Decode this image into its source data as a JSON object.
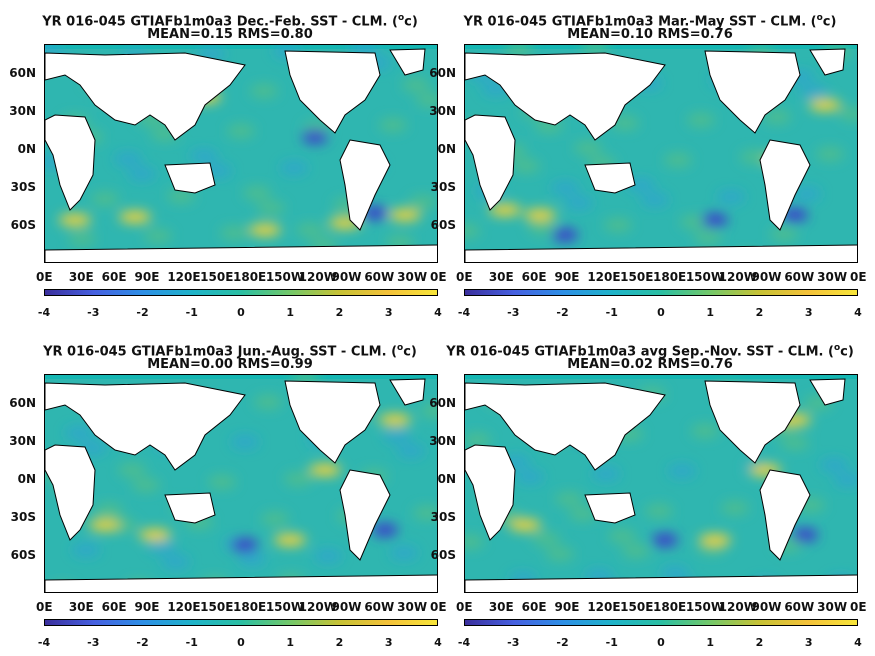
{
  "colorbar": {
    "ticks": [
      "-4",
      "-3",
      "-2",
      "-1",
      "0",
      "1",
      "2",
      "3",
      "4"
    ],
    "colors": [
      "#3b2f9d",
      "#4660e0",
      "#2e8fe6",
      "#1fb3c9",
      "#2bbfa3",
      "#73c86a",
      "#c6c236",
      "#f4c23a",
      "#f7e53a"
    ]
  },
  "lat_labels": [
    "60N",
    "30N",
    "0N",
    "30S",
    "60S"
  ],
  "lon_labels": [
    "0E",
    "30E",
    "60E",
    "90E",
    "120E",
    "150E",
    "180E",
    "150W",
    "120W",
    "90W",
    "60W",
    "30W",
    "0E"
  ],
  "panels": [
    {
      "title1": "YR 016-045 GTIAFb1m0a3  Dec.-Feb. SST - CLM. (",
      "unit": "o",
      "title1b": "c)",
      "title2": "MEAN=0.15   RMS=0.80"
    },
    {
      "title1": "YR 016-045 GTIAFb1m0a3  Mar.-May SST - CLM. (",
      "unit": "o",
      "title1b": "c)",
      "title2": "MEAN=0.10   RMS=0.76"
    },
    {
      "title1": "YR 016-045 GTIAFb1m0a3  Jun.-Aug. SST - CLM. (",
      "unit": "o",
      "title1b": "c)",
      "title2": "MEAN=0.00   RMS=0.99"
    },
    {
      "title1": "YR 016-045 GTIAFb1m0a3 avg Sep.-Nov. SST - CLM. (",
      "unit": "o",
      "title1b": "c)",
      "title2": "MEAN=0.02   RMS=0.76"
    }
  ]
}
